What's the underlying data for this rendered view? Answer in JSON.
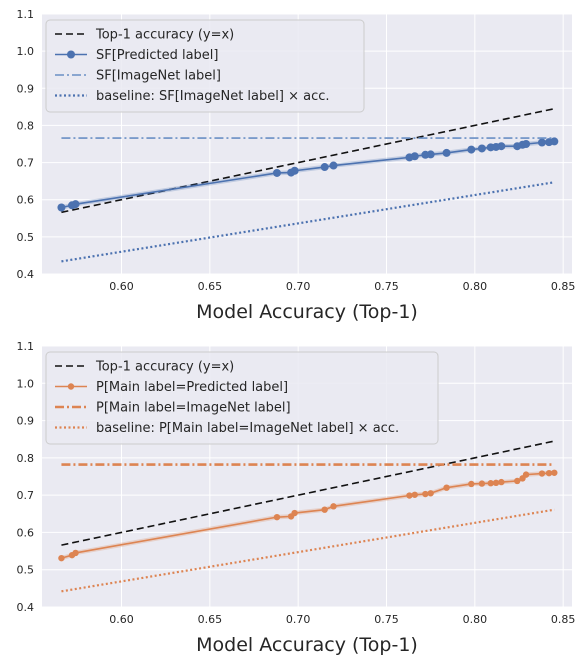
{
  "chart_data": [
    {
      "type": "line",
      "title": "",
      "xlabel": "Model Accuracy (Top-1)",
      "ylabel": "",
      "xlim": [
        0.555,
        0.855
      ],
      "ylim": [
        0.4,
        1.1
      ],
      "xticks": [
        "0.60",
        "0.65",
        "0.70",
        "0.75",
        "0.80",
        "0.85"
      ],
      "yticks": [
        "0.4",
        "0.5",
        "0.6",
        "0.7",
        "0.8",
        "0.9",
        "1.0",
        "1.1"
      ],
      "grid": true,
      "legend_position": "top-left",
      "series": [
        {
          "name": "Top-1 accuracy (y=x)",
          "style": "dashed",
          "color": "#111111",
          "x": [
            0.566,
            0.845
          ],
          "y": [
            0.566,
            0.845
          ]
        },
        {
          "name": "SF[Predicted label]",
          "style": "solid-markers",
          "color": "#4c72b0",
          "x": [
            0.566,
            0.572,
            0.574,
            0.688,
            0.696,
            0.698,
            0.715,
            0.72,
            0.763,
            0.766,
            0.772,
            0.775,
            0.784,
            0.798,
            0.804,
            0.809,
            0.812,
            0.815,
            0.824,
            0.827,
            0.829,
            0.838,
            0.842,
            0.845
          ],
          "y": [
            0.579,
            0.585,
            0.588,
            0.672,
            0.673,
            0.678,
            0.688,
            0.692,
            0.714,
            0.717,
            0.721,
            0.722,
            0.726,
            0.735,
            0.738,
            0.741,
            0.742,
            0.744,
            0.744,
            0.748,
            0.75,
            0.754,
            0.755,
            0.757
          ]
        },
        {
          "name": "SF[ImageNet label]",
          "style": "dashdot",
          "color": "#6a8fc4",
          "x": [
            0.566,
            0.845
          ],
          "y": [
            0.766,
            0.766
          ]
        },
        {
          "name": "baseline: SF[ImageNet label] × acc.",
          "style": "dotted",
          "color": "#4c72b0",
          "x": [
            0.566,
            0.845
          ],
          "y": [
            0.434,
            0.647
          ]
        }
      ]
    },
    {
      "type": "line",
      "title": "",
      "xlabel": "Model Accuracy (Top-1)",
      "ylabel": "",
      "xlim": [
        0.555,
        0.855
      ],
      "ylim": [
        0.4,
        1.1
      ],
      "xticks": [
        "0.60",
        "0.65",
        "0.70",
        "0.75",
        "0.80",
        "0.85"
      ],
      "yticks": [
        "0.4",
        "0.5",
        "0.6",
        "0.7",
        "0.8",
        "0.9",
        "1.0",
        "1.1"
      ],
      "grid": true,
      "legend_position": "top-left",
      "series": [
        {
          "name": "Top-1 accuracy (y=x)",
          "style": "dashed",
          "color": "#111111",
          "x": [
            0.566,
            0.845
          ],
          "y": [
            0.566,
            0.845
          ]
        },
        {
          "name": "P[Main label=Predicted label]",
          "style": "solid-markers",
          "color": "#dd8452",
          "x": [
            0.566,
            0.572,
            0.574,
            0.688,
            0.696,
            0.698,
            0.715,
            0.72,
            0.763,
            0.766,
            0.772,
            0.775,
            0.784,
            0.798,
            0.804,
            0.809,
            0.812,
            0.815,
            0.824,
            0.827,
            0.829,
            0.838,
            0.842,
            0.845
          ],
          "y": [
            0.531,
            0.539,
            0.545,
            0.641,
            0.643,
            0.652,
            0.661,
            0.67,
            0.699,
            0.701,
            0.703,
            0.705,
            0.72,
            0.73,
            0.731,
            0.732,
            0.733,
            0.735,
            0.738,
            0.745,
            0.755,
            0.758,
            0.759,
            0.76
          ]
        },
        {
          "name": "P[Main label=ImageNet label]",
          "style": "dashdot",
          "color": "#dd8452",
          "x": [
            0.566,
            0.845
          ],
          "y": [
            0.782,
            0.782
          ]
        },
        {
          "name": "baseline: P[Main label=ImageNet label] × acc.",
          "style": "dotted",
          "color": "#dd8452",
          "x": [
            0.566,
            0.845
          ],
          "y": [
            0.442,
            0.661
          ]
        }
      ]
    }
  ]
}
